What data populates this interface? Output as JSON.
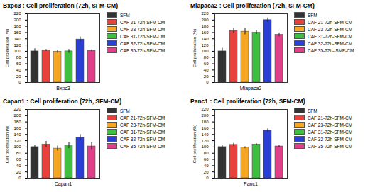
{
  "chart_data": [
    {
      "type": "bar",
      "title": "Bxpc3 : Cell proliferation (72h, SFM-CM)",
      "x_label": "Bxpc3",
      "y_label": "Cell proliferation (%)",
      "categories": [
        "SFM",
        "CAF 21-72h-SFM-CM",
        "CAF 23-72h-SFM-CM",
        "CAF 31-72h-SFM-CM",
        "CAF 32-72h-SFM-CM",
        "CAF 35-72h-SFM-CM"
      ],
      "values": [
        100,
        103,
        99,
        100,
        138,
        102
      ],
      "errors": [
        8,
        3,
        5,
        6,
        8,
        3
      ],
      "colors": [
        "#333333",
        "#e8403a",
        "#f5a623",
        "#3fbf3f",
        "#2a3fd6",
        "#e0408a"
      ],
      "ylim": [
        0,
        220
      ],
      "yticks": [
        0,
        20,
        40,
        60,
        80,
        100,
        120,
        140,
        160,
        180,
        200,
        220
      ],
      "legend": "right",
      "tick_labels": "y"
    },
    {
      "type": "bar",
      "title": "Miapaca2 : Cell proliferation (72h, SFM-CM)",
      "x_label": "Miapaca2",
      "y_label": "Cell proliferation (%)",
      "categories": [
        "SFM",
        "CAF 21-72h-SFM-CM",
        "CAF 23-72h-SFM-CM",
        "CAF 31-72h-SFM-CM",
        "CAF 32-72h-SFM-CM",
        "CAF 35-72h--SMF-CM"
      ],
      "values": [
        100,
        165,
        163,
        160,
        200,
        153
      ],
      "errors": [
        10,
        8,
        10,
        6,
        7,
        6
      ],
      "colors": [
        "#333333",
        "#e8403a",
        "#f5a623",
        "#3fbf3f",
        "#2a3fd6",
        "#e0408a"
      ],
      "ylim": [
        0,
        220
      ],
      "yticks": [
        0,
        20,
        40,
        60,
        80,
        100,
        120,
        140,
        160,
        180,
        200,
        220
      ],
      "legend": "right",
      "tick_labels": "y"
    },
    {
      "type": "bar",
      "title": "Capan1 : Cell proliferation (72h, SFM-CM)",
      "x_label": "Capan1",
      "y_label": "Cell proliferation (%)",
      "categories": [
        "SFM",
        "CAF 21-72h-SFM-CM",
        "CAF 23-72h-SFM-CM",
        "CAF 31-72h-SFM-CM",
        "CAF 32-72h-SFM-CM",
        "CAF 35-72h-SFM-CM"
      ],
      "values": [
        100,
        108,
        95,
        105,
        130,
        102
      ],
      "errors": [
        5,
        10,
        8,
        10,
        10,
        12
      ],
      "colors": [
        "#333333",
        "#e8403a",
        "#f5a623",
        "#3fbf3f",
        "#2a3fd6",
        "#e0408a"
      ],
      "ylim": [
        0,
        220
      ],
      "yticks": [
        0,
        20,
        40,
        60,
        80,
        100,
        120,
        140,
        160,
        180,
        200,
        220
      ],
      "legend": "right",
      "tick_labels": "y"
    },
    {
      "type": "bar",
      "title": "Panc1 : Cell proliferation (72h, SFM-CM)",
      "x_label": "Panc1",
      "y_label": "Cell proliferation (%)",
      "categories": [
        "SFM",
        "CAF 21-72h-SFM-CM",
        "CAF 23-72h-SFM-CM",
        "CAF 31-72h-SFM-CM",
        "CAF 32-72h-SFM-CM",
        "CAF 35-72h-SFM-CM"
      ],
      "values": [
        100,
        107,
        98,
        108,
        152,
        102
      ],
      "errors": [
        4,
        5,
        3,
        3,
        6,
        3
      ],
      "colors": [
        "#333333",
        "#e8403a",
        "#f5a623",
        "#3fbf3f",
        "#2a3fd6",
        "#e0408a"
      ],
      "ylim": [
        0,
        220
      ],
      "yticks": [
        0,
        20,
        40,
        60,
        80,
        100,
        120,
        140,
        160,
        180,
        200,
        220
      ],
      "legend": "right",
      "tick_labels": "y"
    }
  ]
}
